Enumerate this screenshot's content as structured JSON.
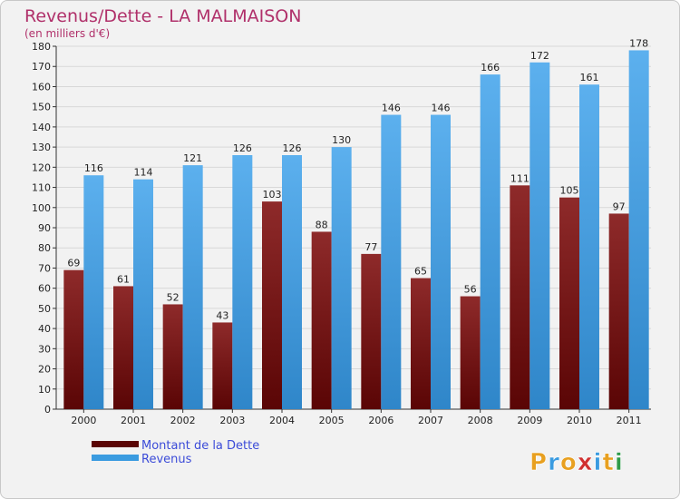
{
  "chart_data": {
    "type": "bar",
    "title": "Revenus/Dette - LA MALMAISON",
    "subtitle": "(en milliers d'€)",
    "categories": [
      "2000",
      "2001",
      "2002",
      "2003",
      "2004",
      "2005",
      "2006",
      "2007",
      "2008",
      "2009",
      "2010",
      "2011"
    ],
    "series": [
      {
        "name": "Montant de la Dette",
        "color": "#8b1a1a",
        "values": [
          69,
          61,
          52,
          43,
          103,
          88,
          77,
          65,
          56,
          111,
          105,
          97
        ]
      },
      {
        "name": "Revenus",
        "color": "#3a9be0",
        "values": [
          116,
          114,
          121,
          126,
          126,
          130,
          146,
          146,
          166,
          172,
          161,
          178
        ]
      }
    ],
    "ylim": [
      0,
      180
    ],
    "yticks": [
      0,
      10,
      20,
      30,
      40,
      50,
      60,
      70,
      80,
      90,
      100,
      110,
      120,
      130,
      140,
      150,
      160,
      170,
      180
    ],
    "grid": true,
    "legend_position": "bottom-left"
  },
  "logo": {
    "letters": [
      "P",
      "r",
      "o",
      "x",
      "i",
      "t",
      "i"
    ],
    "colors": [
      "#e8a020",
      "#3a9be0",
      "#e8a020",
      "#d03030",
      "#3a9be0",
      "#e8a020",
      "#2e9a4a"
    ]
  }
}
